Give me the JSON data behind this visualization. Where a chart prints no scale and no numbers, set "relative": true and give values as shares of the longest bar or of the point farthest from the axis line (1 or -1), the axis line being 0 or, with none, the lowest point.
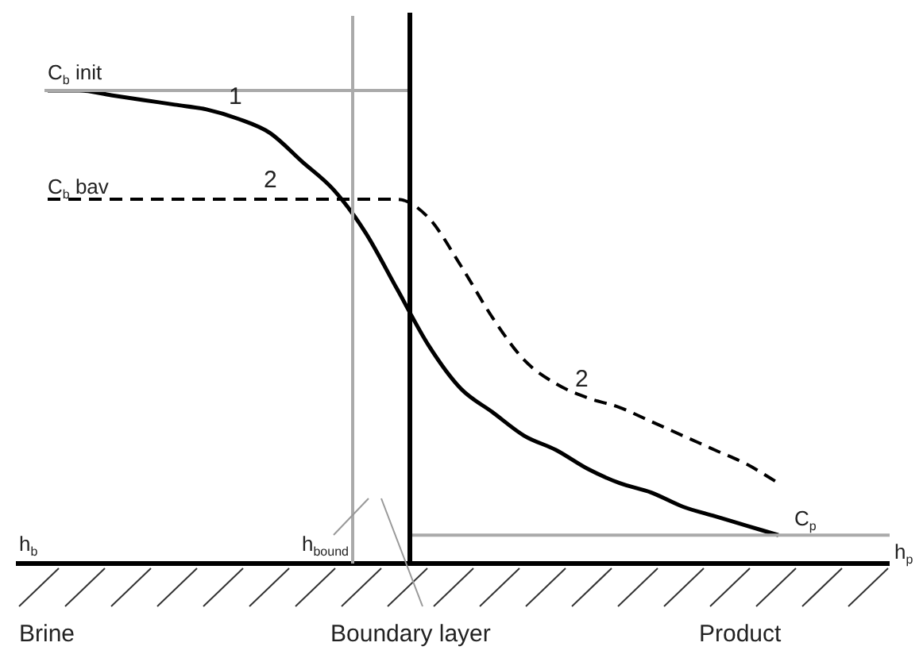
{
  "chart_data": {
    "type": "line",
    "relative": true,
    "categories": [
      null,
      null,
      null,
      null,
      null,
      null,
      null,
      null,
      null,
      null,
      null,
      null,
      null,
      null,
      null,
      null,
      null,
      null,
      null,
      null,
      null,
      null,
      null,
      null
    ],
    "series": [
      {
        "name": "1",
        "color": "#000000",
        "line_style": "solid",
        "values": [
          1.0,
          1.0,
          0.99,
          0.98,
          0.97,
          0.96,
          0.94,
          0.91,
          0.85,
          0.79,
          0.7,
          0.58,
          0.46,
          0.37,
          0.32,
          0.27,
          0.24,
          0.2,
          0.17,
          0.15,
          0.12,
          0.1,
          0.08,
          0.06
        ]
      },
      {
        "name": "2",
        "color": "#000000",
        "line_style": "dashed",
        "values": [
          0.77,
          0.77,
          0.77,
          0.77,
          0.77,
          0.77,
          0.77,
          0.77,
          0.77,
          0.77,
          0.77,
          0.77,
          0.73,
          0.63,
          0.52,
          0.43,
          0.38,
          0.35,
          0.33,
          0.3,
          0.27,
          0.24,
          0.21,
          0.17
        ]
      }
    ],
    "ref_lines": [
      {
        "axis": "y",
        "value": 1,
        "label": "C$_{b}$ init",
        "color": "#aaaaaa"
      },
      {
        "axis": "y",
        "value": 0.06,
        "label": "C$_{p}$",
        "color": "#aaaaaa"
      }
    ],
    "annotations": [
      "C$_{b}$ bav",
      "h$_{b}$",
      "h$_{bound}$",
      "h$_{p}$",
      "Brine",
      "Boundary layer",
      "Product",
      "2"
    ]
  }
}
